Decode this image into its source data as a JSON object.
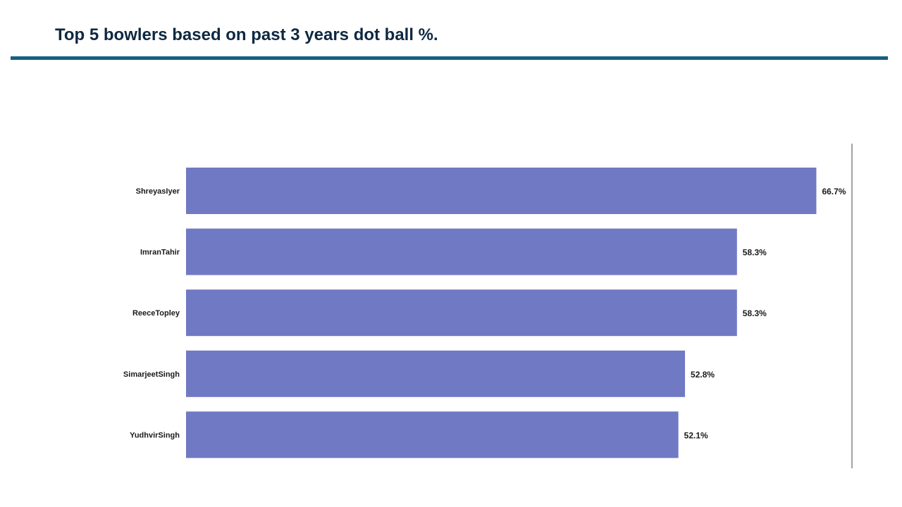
{
  "slide": {
    "title": "Top 5 bowlers based on past 3 years dot ball %."
  },
  "colors": {
    "title": "#0e2841",
    "rule": "#156082",
    "bar": "#7079c3",
    "axis": "#444444"
  },
  "chart_data": {
    "type": "bar",
    "orientation": "horizontal",
    "categories": [
      "ShreyasIyer",
      "ImranTahir",
      "ReeceTopley",
      "SimarjeetSingh",
      "YudhvirSingh"
    ],
    "values": [
      66.7,
      58.3,
      58.3,
      52.8,
      52.1
    ],
    "value_labels": [
      "66.7%",
      "58.3%",
      "58.3%",
      "52.8%",
      "52.1%"
    ],
    "xlim": [
      0,
      70
    ],
    "grid": false,
    "legend": "none"
  }
}
